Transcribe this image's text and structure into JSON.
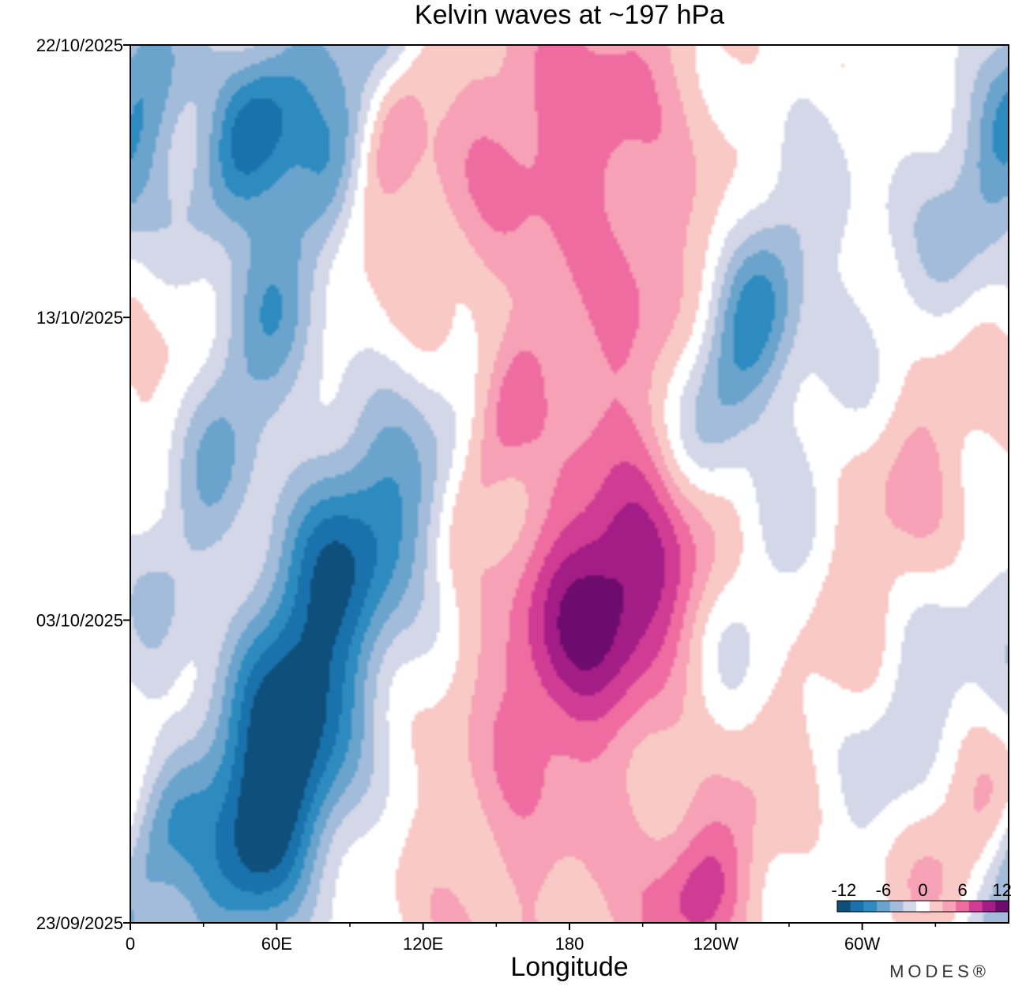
{
  "chart_data": {
    "type": "heatmap",
    "title": "Kelvin waves at ~197 hPa",
    "xlabel": "Longitude",
    "ylabel": "",
    "x_ticks": [
      {
        "lon": 0,
        "label": "0"
      },
      {
        "lon": 60,
        "label": "60E"
      },
      {
        "lon": 120,
        "label": "120E"
      },
      {
        "lon": 180,
        "label": "180"
      },
      {
        "lon": 240,
        "label": "120W"
      },
      {
        "lon": 300,
        "label": "60W"
      }
    ],
    "x_minor_ticks": [
      30,
      90,
      150,
      210,
      270,
      330
    ],
    "xlim": [
      0,
      360
    ],
    "y_ticks": [
      {
        "date": "22/10/2025",
        "day": 29
      },
      {
        "date": "13/10/2025",
        "day": 20
      },
      {
        "date": "03/10/2025",
        "day": 10
      },
      {
        "date": "23/09/2025",
        "day": 0
      }
    ],
    "ylim": [
      "23/09/2025",
      "22/10/2025"
    ],
    "colorbar": {
      "levels": [
        -12,
        -10,
        -8,
        -6,
        -4,
        -2,
        0,
        2,
        4,
        6,
        8,
        10,
        12
      ],
      "colors": [
        "#0f4f7c",
        "#1a72ad",
        "#2d8bc0",
        "#6aa4cd",
        "#a2bcd9",
        "#d4d7e8",
        "#ffffff",
        "#f9c9c6",
        "#f6a1b6",
        "#ef6ca1",
        "#d03c93",
        "#a31d86",
        "#6d0b6e"
      ],
      "labels": [
        "-12",
        "-6",
        "0",
        "6",
        "12"
      ],
      "label_values": [
        -12,
        -6,
        0,
        6,
        12
      ]
    },
    "features": [
      {
        "lon": 50,
        "day": 26,
        "value": -10,
        "sx": 14,
        "sy": 2.5
      },
      {
        "lon": 55,
        "day": 20,
        "value": -6,
        "sx": 16,
        "sy": 9
      },
      {
        "lon": 62,
        "day": 7,
        "value": -10,
        "sx": 20,
        "sy": 4
      },
      {
        "lon": 60,
        "day": 3,
        "value": -8,
        "sx": 18,
        "sy": 3
      },
      {
        "lon": 95,
        "day": 13,
        "value": -7,
        "sx": 24,
        "sy": 3
      },
      {
        "lon": 5,
        "day": 27,
        "value": -5,
        "sx": 12,
        "sy": 3
      },
      {
        "lon": 5,
        "day": 2,
        "value": -7,
        "sx": 12,
        "sy": 3
      },
      {
        "lon": 250,
        "day": 19,
        "value": -9,
        "sx": 14,
        "sy": 3.5
      },
      {
        "lon": 345,
        "day": 23,
        "value": -4,
        "sx": 20,
        "sy": 4
      },
      {
        "lon": 250,
        "day": 10,
        "value": -4,
        "sx": 16,
        "sy": 5
      },
      {
        "lon": 100,
        "day": 28,
        "value": -2,
        "sx": 10,
        "sy": 6
      },
      {
        "lon": 320,
        "day": 7,
        "value": -3,
        "sx": 14,
        "sy": 3
      },
      {
        "lon": 160,
        "day": 26,
        "value": 5,
        "sx": 30,
        "sy": 4
      },
      {
        "lon": 105,
        "day": 26,
        "value": 4,
        "sx": 10,
        "sy": 3
      },
      {
        "lon": 200,
        "day": 11,
        "value": 9,
        "sx": 28,
        "sy": 3
      },
      {
        "lon": 175,
        "day": 7,
        "value": 4,
        "sx": 28,
        "sy": 8
      },
      {
        "lon": 200,
        "day": 20,
        "value": 4,
        "sx": 22,
        "sy": 4
      },
      {
        "lon": 150,
        "day": 16,
        "value": 5,
        "sx": 10,
        "sy": 2.5
      },
      {
        "lon": 225,
        "day": 3,
        "value": 4,
        "sx": 25,
        "sy": 5
      },
      {
        "lon": 325,
        "day": 16,
        "value": 4,
        "sx": 18,
        "sy": 5
      },
      {
        "lon": 345,
        "day": 3,
        "value": 5,
        "sx": 18,
        "sy": 2.5
      },
      {
        "lon": 235,
        "day": 1,
        "value": 5,
        "sx": 14,
        "sy": 2
      },
      {
        "lon": 30,
        "day": 20,
        "value": 2,
        "sx": 12,
        "sy": 5
      },
      {
        "lon": 30,
        "day": 9,
        "value": 2,
        "sx": 12,
        "sy": 5
      },
      {
        "lon": 200,
        "day": 27,
        "value": 3,
        "sx": 20,
        "sy": 4
      }
    ]
  },
  "branding": {
    "text": "MODES®"
  }
}
